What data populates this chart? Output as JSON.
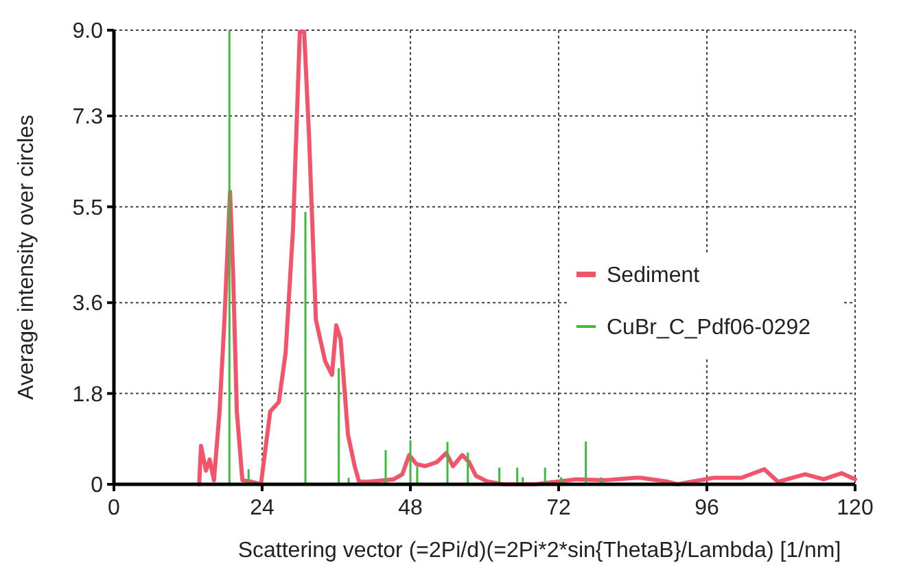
{
  "chart_data": {
    "type": "line",
    "xlabel": "Scattering vector (=2Pi/d)(=2Pi*2*sin{ThetaB}/Lambda) [1/nm]",
    "ylabel": "Average intensity over circles",
    "xlim": [
      0,
      120
    ],
    "xticks": [
      0,
      24,
      48,
      72,
      96,
      120
    ],
    "ylim": [
      0,
      9.0
    ],
    "yticks": [
      0,
      1.8,
      3.6,
      5.5,
      7.3,
      {
        "value": 9.0,
        "label": "9.0"
      }
    ],
    "grid": true,
    "legend": "right",
    "series": [
      {
        "name": "Sediment",
        "color": "#f2546c",
        "x": [
          13.8,
          14.1,
          14.9,
          15.5,
          16.2,
          17.1,
          17.9,
          18.8,
          19.3,
          19.9,
          20.8,
          22.3,
          23.8,
          25.3,
          26.7,
          27.8,
          29.0,
          30.1,
          30.8,
          31.6,
          32.7,
          34.2,
          35.3,
          36.0,
          36.7,
          37.9,
          39.0,
          39.7,
          41.2,
          45.3,
          46.7,
          47.8,
          49.0,
          50.4,
          52.3,
          53.8,
          54.9,
          56.4,
          57.5,
          58.6,
          60.4,
          63.0,
          68.2,
          74.9,
          79.3,
          84.5,
          85.3,
          89.7,
          91.2,
          97.1,
          101.6,
          105.3,
          107.5,
          111.9,
          114.9,
          117.8,
          120
        ],
        "values": [
          0,
          0.76,
          0.27,
          0.49,
          0.08,
          1.44,
          3.26,
          5.8,
          4.16,
          1.44,
          0.08,
          0.05,
          0,
          1.44,
          1.63,
          2.61,
          5.06,
          8.97,
          8.97,
          6.88,
          3.26,
          2.44,
          2.17,
          3.15,
          2.88,
          0.98,
          0.35,
          0.05,
          0.05,
          0.1,
          0.2,
          0.58,
          0.4,
          0.36,
          0.44,
          0.62,
          0.36,
          0.58,
          0.44,
          0.17,
          0.06,
          0,
          0,
          0.1,
          0.08,
          0.13,
          0.13,
          0.05,
          0,
          0.13,
          0.13,
          0.3,
          0.05,
          0.2,
          0.1,
          0.22,
          0.1
        ]
      },
      {
        "name": "CuBr_C_Pdf06-0292",
        "type": "bar",
        "color": "#3dbb3d",
        "x": [
          18.7,
          21.8,
          31.0,
          36.4,
          38.0,
          44.0,
          48.0,
          49.1,
          54.0,
          57.3,
          62.4,
          65.3,
          66.2,
          69.8,
          72.4,
          76.4,
          78.9
        ],
        "values": [
          9.0,
          0.3,
          5.4,
          2.3,
          0.13,
          0.68,
          0.87,
          0.35,
          0.84,
          0.63,
          0.33,
          0.33,
          0.14,
          0.33,
          0.14,
          0.85,
          0.14
        ]
      }
    ]
  }
}
